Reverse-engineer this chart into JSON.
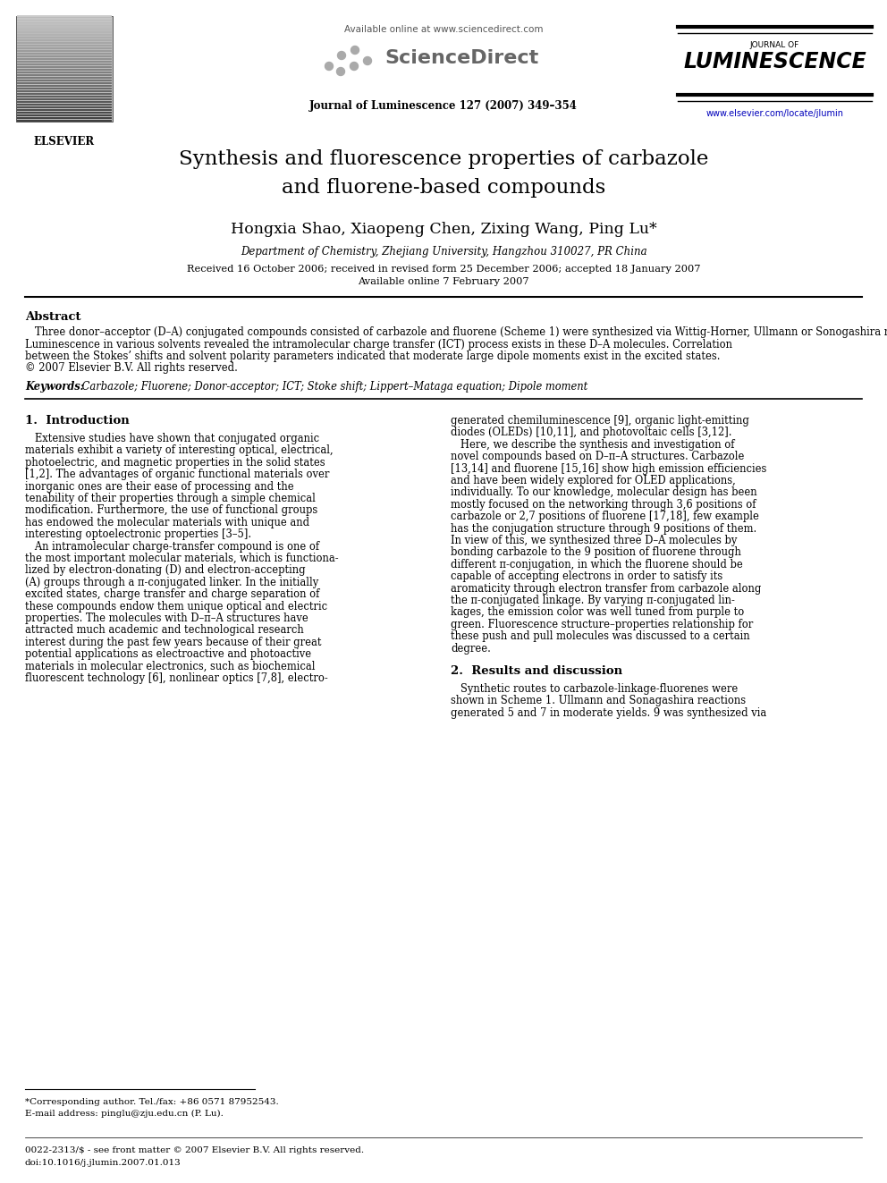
{
  "bg_color": "#ffffff",
  "title_line1": "Synthesis and fluorescence properties of carbazole",
  "title_line2": "and fluorene-based compounds",
  "authors": "Hongxia Shao, Xiaopeng Chen, Zixing Wang, Ping Lu*",
  "affiliation": "Department of Chemistry, Zhejiang University, Hangzhou 310027, PR China",
  "received_line1": "Received 16 October 2006; received in revised form 25 December 2006; accepted 18 January 2007",
  "received_line2": "Available online 7 February 2007",
  "header_url": "Available online at www.sciencedirect.com",
  "sciencedirect": "ScienceDirect",
  "journal_ref": "Journal of Luminescence 127 (2007) 349–354",
  "journal_of": "JOURNAL OF",
  "luminescence": "LUMINESCENCE",
  "journal_link": "www.elsevier.com/locate/jlumin",
  "elsevier_text": "ELSEVIER",
  "abstract_title": "Abstract",
  "abstract_lines": [
    "   Three donor–acceptor (D–A) conjugated compounds consisted of carbazole and fluorene (Scheme 1) were synthesized via Wittig-Horner, Ullmann or Sonogashira reaction. Their photoluminescence properties were investigated in solution and solid state, respectively.",
    "Luminescence in various solvents revealed the intramolecular charge transfer (ICT) process exists in these D–A molecules. Correlation",
    "between the Stokes’ shifts and solvent polarity parameters indicated that moderate large dipole moments exist in the excited states.",
    "© 2007 Elsevier B.V. All rights reserved."
  ],
  "keywords_label": "Keywords:",
  "keywords_text": " Carbazole; Fluorene; Donor-acceptor; ICT; Stoke shift; Lippert–Mataga equation; Dipole moment",
  "section1_title": "1.  Introduction",
  "intro_col1": [
    "   Extensive studies have shown that conjugated organic",
    "materials exhibit a variety of interesting optical, electrical,",
    "photoelectric, and magnetic properties in the solid states",
    "[1,2]. The advantages of organic functional materials over",
    "inorganic ones are their ease of processing and the",
    "tenability of their properties through a simple chemical",
    "modification. Furthermore, the use of functional groups",
    "has endowed the molecular materials with unique and",
    "interesting optoelectronic properties [3–5].",
    "   An intramolecular charge-transfer compound is one of",
    "the most important molecular materials, which is functiona-",
    "lized by electron-donating (D) and electron-accepting",
    "(A) groups through a π-conjugated linker. In the initially",
    "excited states, charge transfer and charge separation of",
    "these compounds endow them unique optical and electric",
    "properties. The molecules with D–π–A structures have",
    "attracted much academic and technological research",
    "interest during the past few years because of their great",
    "potential applications as electroactive and photoactive",
    "materials in molecular electronics, such as biochemical",
    "fluorescent technology [6], nonlinear optics [7,8], electro-"
  ],
  "intro_col2": [
    "generated chemiluminescence [9], organic light-emitting",
    "diodes (OLEDs) [10,11], and photovoltaic cells [3,12].",
    "   Here, we describe the synthesis and investigation of",
    "novel compounds based on D–π–A structures. Carbazole",
    "[13,14] and fluorene [15,16] show high emission efficiencies",
    "and have been widely explored for OLED applications,",
    "individually. To our knowledge, molecular design has been",
    "mostly focused on the networking through 3,6 positions of",
    "carbazole or 2,7 positions of fluorene [17,18], few example",
    "has the conjugation structure through 9 positions of them.",
    "In view of this, we synthesized three D–A molecules by",
    "bonding carbazole to the 9 position of fluorene through",
    "different π-conjugation, in which the fluorene should be",
    "capable of accepting electrons in order to satisfy its",
    "aromaticity through electron transfer from carbazole along",
    "the π-conjugated linkage. By varying π-conjugated lin-",
    "kages, the emission color was well tuned from purple to",
    "green. Fluorescence structure–properties relationship for",
    "these push and pull molecules was discussed to a certain",
    "degree."
  ],
  "section2_title": "2.  Results and discussion",
  "results_col2": [
    "   Synthetic routes to carbazole-linkage-fluorenes were",
    "shown in Scheme 1. Ullmann and Sonagashira reactions",
    "generated 5 and 7 in moderate yields. 9 was synthesized via"
  ],
  "footnote1": "*Corresponding author. Tel./fax: +86 0571 87952543.",
  "footnote2": "E-mail address: pinglu@zju.edu.cn (P. Lu).",
  "bottom1": "0022-2313/$ - see front matter © 2007 Elsevier B.V. All rights reserved.",
  "bottom2": "doi:10.1016/j.jlumin.2007.01.013"
}
